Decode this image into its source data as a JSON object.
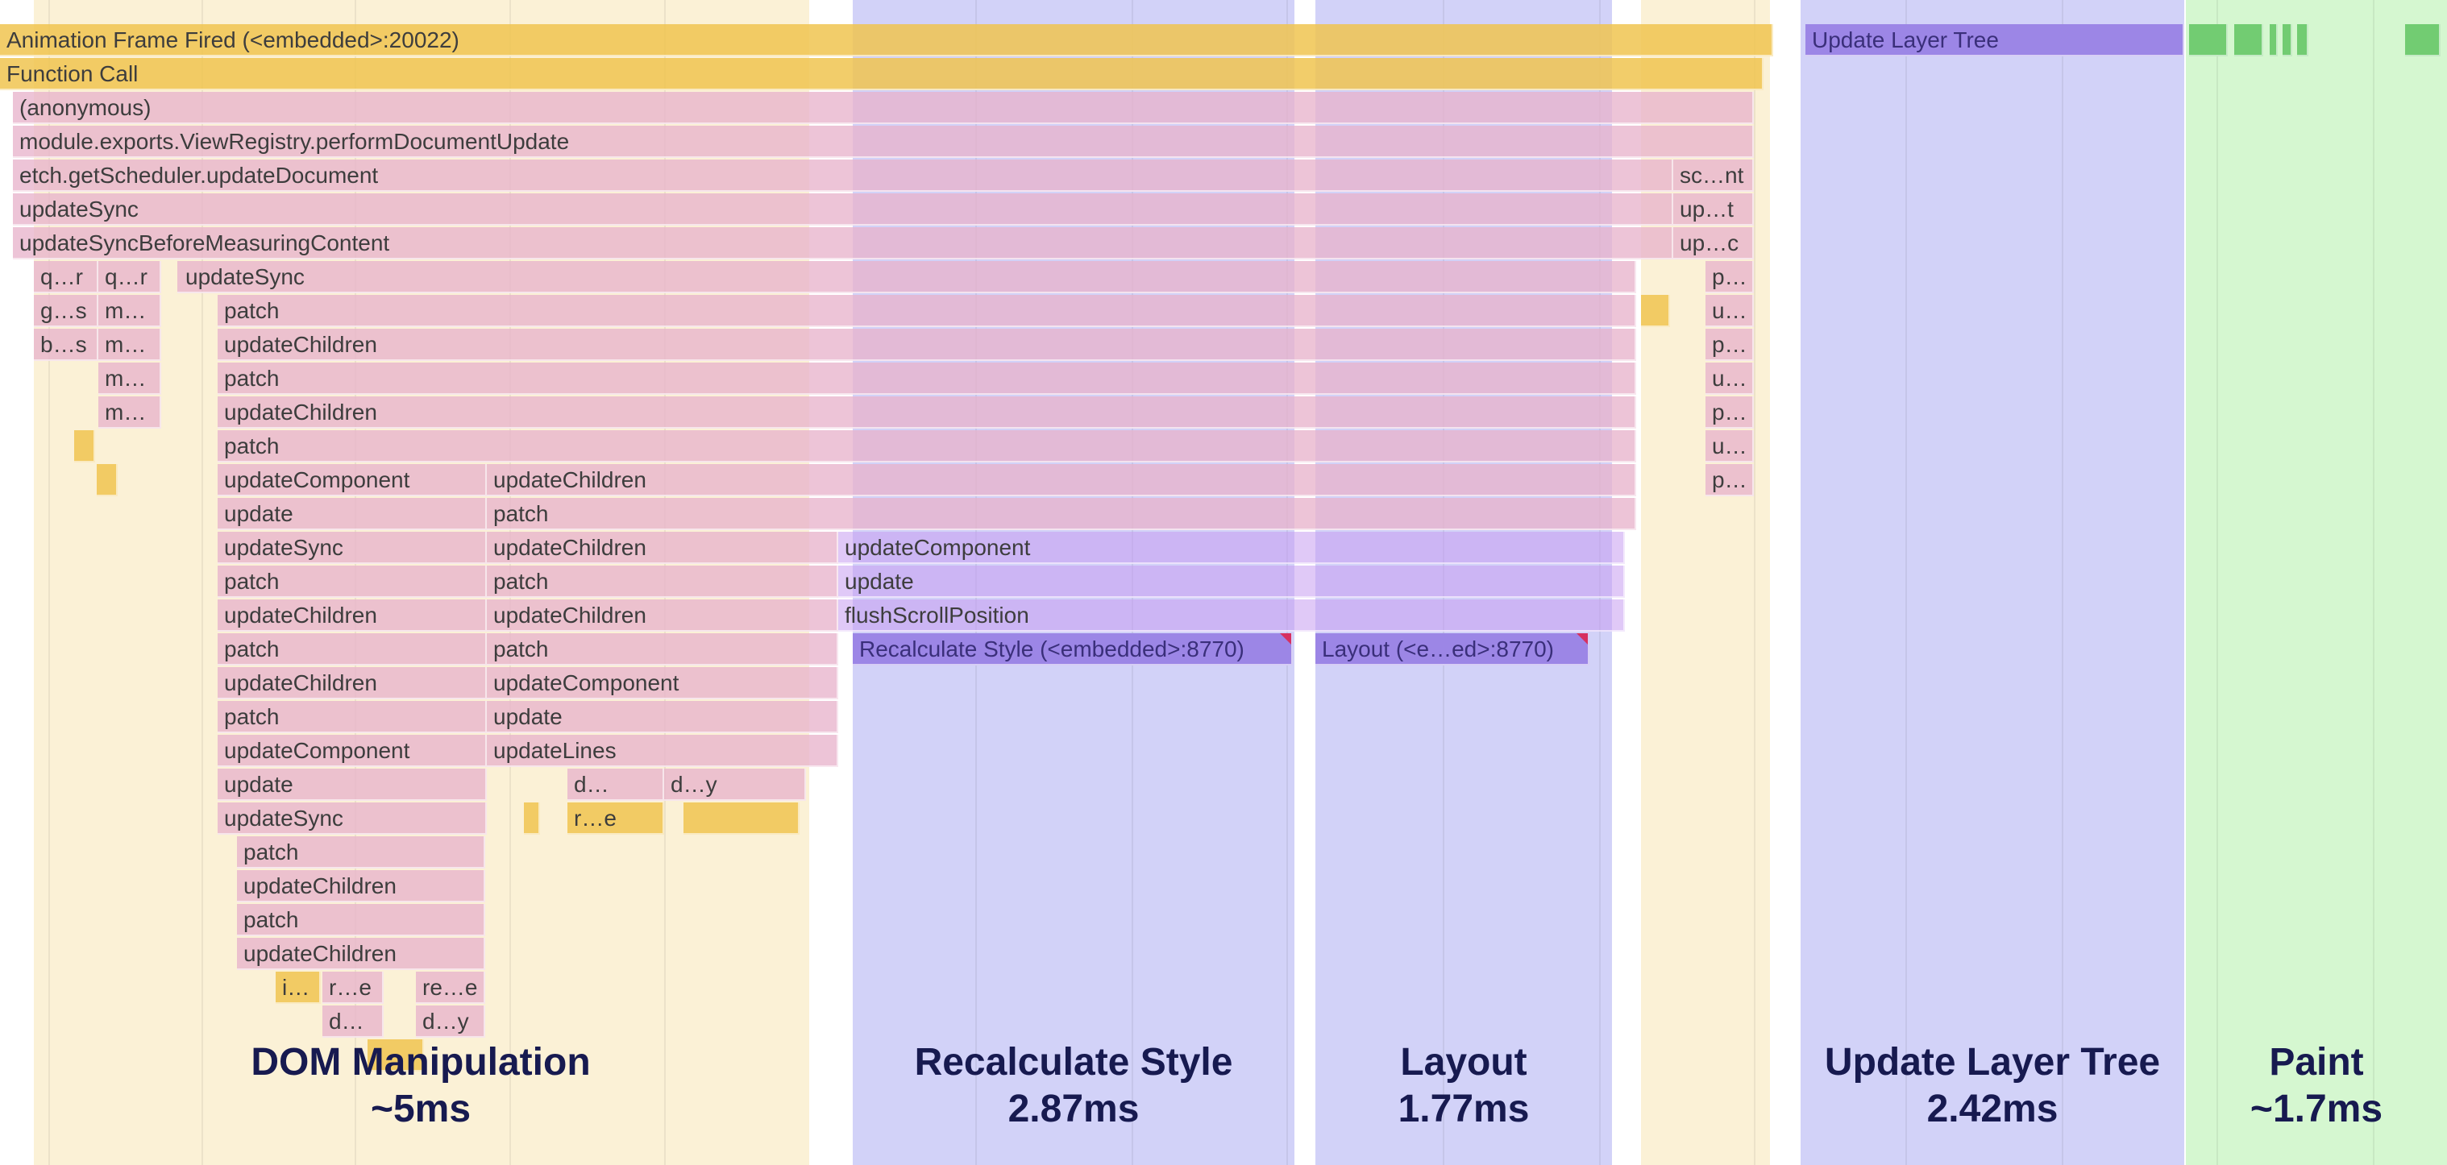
{
  "colors": {
    "dom_phase": "#fbf1d6",
    "style_phase": "#d2d2f8",
    "layout_phase": "#d2d2f8",
    "layer_phase": "#d2d2f8",
    "paint_phase": "#d5f7d0",
    "js_frame": "#e8b4cc",
    "yellow_frame": "#f0c450",
    "purple_frame": "#9c86e6",
    "paint_frame": "#72cc72"
  },
  "rows": {
    "r0": "Animation Frame Fired (<embedded>:20022)",
    "r1": "Function Call",
    "r2": "(anonymous)",
    "r3": "module.exports.ViewRegistry.performDocumentUpdate",
    "r4": "etch.getScheduler.updateDocument",
    "r5": "updateSync",
    "r6": "updateSyncBeforeMeasuringContent"
  },
  "labels": {
    "qr": "q…r",
    "gs": "g…s",
    "bs": "b…s",
    "m": "m…",
    "update_sync": "updateSync",
    "patch": "patch",
    "update_children": "updateChildren",
    "update_component": "updateComponent",
    "update": "update",
    "update_lines": "updateLines",
    "d": "d…",
    "dy": "d…y",
    "re": "r…e",
    "i": "i…",
    "re2": "re…e",
    "flush": "flushScrollPosition",
    "recalc": "Recalculate Style (<embedded>:8770)",
    "layout": "Layout (<e…ed>:8770)",
    "update_layer_tree": "Update Layer Tree",
    "sc_nt": "sc…nt",
    "up_t": "up…t",
    "up_c": "up…c",
    "p": "p…",
    "u": "u…"
  },
  "overlays": {
    "dom": {
      "title": "DOM Manipulation",
      "time": "~5ms"
    },
    "style": {
      "title": "Recalculate Style",
      "time": "2.87ms"
    },
    "layout": {
      "title": "Layout",
      "time": "1.77ms"
    },
    "layer": {
      "title": "Update Layer Tree",
      "time": "2.42ms"
    },
    "paint": {
      "title": "Paint",
      "time": "~1.7ms"
    }
  }
}
